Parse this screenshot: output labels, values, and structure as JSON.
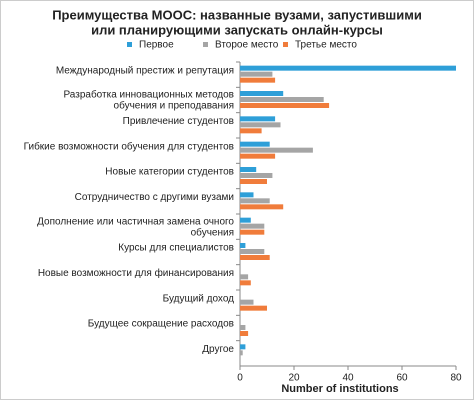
{
  "chart_data": {
    "type": "hbar",
    "title": [
      "Преимущества MOOC: названные вузами, запустившими",
      "или планирующими запускать онлайн-курсы"
    ],
    "x_label": "Number of institutions",
    "categories": [
      "Международный престиж и репутация",
      [
        "Разработка инновационных методов",
        "обучения и преподавания"
      ],
      "Привлечение студентов",
      "Гибкие возможности обучения для студентов",
      "Новые категории студентов",
      "Сотрудничество с другими вузами",
      [
        "Дополнение или частичная замена очного",
        "обучения"
      ],
      "Курсы для специалистов",
      "Новые возможности для финансирования",
      "Будущий доход",
      "Будущее сокращение расходов",
      "Другое"
    ],
    "series": [
      {
        "name": "Первое",
        "color": "#2e9fd8",
        "values": [
          80,
          16,
          13,
          11,
          6,
          5,
          4,
          2,
          0,
          0,
          0,
          2
        ]
      },
      {
        "name": "Второе место",
        "color": "#a5a5a5",
        "values": [
          12,
          31,
          15,
          27,
          12,
          11,
          9,
          9,
          3,
          5,
          2,
          1
        ]
      },
      {
        "name": "Третье место",
        "color": "#f07c3b",
        "values": [
          13,
          33,
          8,
          13,
          10,
          16,
          9,
          11,
          4,
          10,
          3,
          0
        ]
      }
    ],
    "xlim": [
      0,
      80
    ],
    "xticks": [
      0,
      20,
      40,
      60,
      80
    ]
  }
}
